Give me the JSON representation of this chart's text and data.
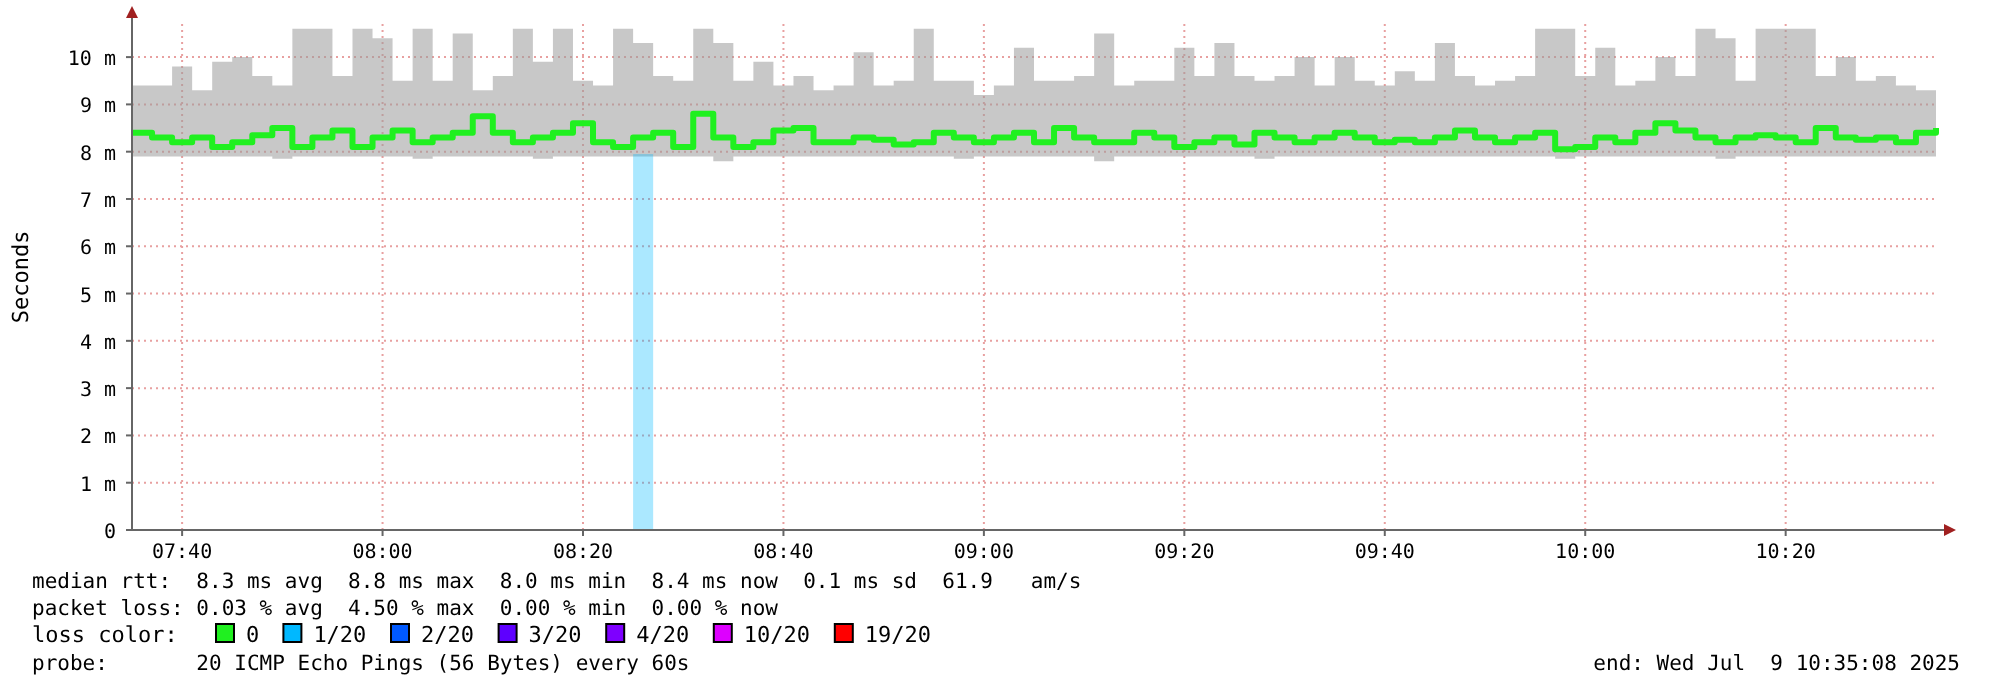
{
  "chart_data": {
    "type": "step",
    "ylabel": "Seconds",
    "xlim": [
      "2025-07-09T07:35",
      "2025-07-09T10:35"
    ],
    "xticks": [
      {
        "value": "2025-07-09T07:40",
        "label": "07:40"
      },
      {
        "value": "2025-07-09T08:00",
        "label": "08:00"
      },
      {
        "value": "2025-07-09T08:20",
        "label": "08:20"
      },
      {
        "value": "2025-07-09T08:40",
        "label": "08:40"
      },
      {
        "value": "2025-07-09T09:00",
        "label": "09:00"
      },
      {
        "value": "2025-07-09T09:20",
        "label": "09:20"
      },
      {
        "value": "2025-07-09T09:40",
        "label": "09:40"
      },
      {
        "value": "2025-07-09T10:00",
        "label": "10:00"
      },
      {
        "value": "2025-07-09T10:20",
        "label": "10:20"
      }
    ],
    "ylim": [
      0,
      10.7
    ],
    "yticks": [
      0,
      {
        "value": 1,
        "label": "1 m"
      },
      {
        "value": 2,
        "label": "2 m"
      },
      {
        "value": 3,
        "label": "3 m"
      },
      {
        "value": 4,
        "label": "4 m"
      },
      {
        "value": 5,
        "label": "5 m"
      },
      {
        "value": 6,
        "label": "6 m"
      },
      {
        "value": 7,
        "label": "7 m"
      },
      {
        "value": 8,
        "label": "8 m"
      },
      {
        "value": 9,
        "label": "9 m"
      },
      {
        "value": 10,
        "label": "10 m"
      }
    ],
    "grid": true,
    "legend": "bottom",
    "legend_title": "loss color:",
    "x": [
      "2025-07-09T07:35",
      "2025-07-09T07:37",
      "2025-07-09T07:39",
      "2025-07-09T07:41",
      "2025-07-09T07:43",
      "2025-07-09T07:45",
      "2025-07-09T07:47",
      "2025-07-09T07:49",
      "2025-07-09T07:51",
      "2025-07-09T07:53",
      "2025-07-09T07:55",
      "2025-07-09T07:57",
      "2025-07-09T07:59",
      "2025-07-09T08:01",
      "2025-07-09T08:03",
      "2025-07-09T08:05",
      "2025-07-09T08:07",
      "2025-07-09T08:09",
      "2025-07-09T08:11",
      "2025-07-09T08:13",
      "2025-07-09T08:15",
      "2025-07-09T08:17",
      "2025-07-09T08:19",
      "2025-07-09T08:21",
      "2025-07-09T08:23",
      "2025-07-09T08:25",
      "2025-07-09T08:27",
      "2025-07-09T08:29",
      "2025-07-09T08:31",
      "2025-07-09T08:33",
      "2025-07-09T08:35",
      "2025-07-09T08:37",
      "2025-07-09T08:39",
      "2025-07-09T08:41",
      "2025-07-09T08:43",
      "2025-07-09T08:45",
      "2025-07-09T08:47",
      "2025-07-09T08:49",
      "2025-07-09T08:51",
      "2025-07-09T08:53",
      "2025-07-09T08:55",
      "2025-07-09T08:57",
      "2025-07-09T08:59",
      "2025-07-09T09:01",
      "2025-07-09T09:03",
      "2025-07-09T09:05",
      "2025-07-09T09:07",
      "2025-07-09T09:09",
      "2025-07-09T09:11",
      "2025-07-09T09:13",
      "2025-07-09T09:15",
      "2025-07-09T09:17",
      "2025-07-09T09:19",
      "2025-07-09T09:21",
      "2025-07-09T09:23",
      "2025-07-09T09:25",
      "2025-07-09T09:27",
      "2025-07-09T09:29",
      "2025-07-09T09:31",
      "2025-07-09T09:33",
      "2025-07-09T09:35",
      "2025-07-09T09:37",
      "2025-07-09T09:39",
      "2025-07-09T09:41",
      "2025-07-09T09:43",
      "2025-07-09T09:45",
      "2025-07-09T09:47",
      "2025-07-09T09:49",
      "2025-07-09T09:51",
      "2025-07-09T09:53",
      "2025-07-09T09:55",
      "2025-07-09T09:57",
      "2025-07-09T09:59",
      "2025-07-09T10:01",
      "2025-07-09T10:03",
      "2025-07-09T10:05",
      "2025-07-09T10:07",
      "2025-07-09T10:09",
      "2025-07-09T10:11",
      "2025-07-09T10:13",
      "2025-07-09T10:15",
      "2025-07-09T10:17",
      "2025-07-09T10:19",
      "2025-07-09T10:21",
      "2025-07-09T10:23",
      "2025-07-09T10:25",
      "2025-07-09T10:27",
      "2025-07-09T10:29",
      "2025-07-09T10:31",
      "2025-07-09T10:33",
      "2025-07-09T10:35"
    ],
    "series": [
      {
        "name": "0",
        "color": "#20f020",
        "values": [
          8.4,
          8.3,
          8.2,
          8.3,
          8.1,
          8.2,
          8.35,
          8.5,
          8.1,
          8.3,
          8.45,
          8.1,
          8.3,
          8.45,
          8.2,
          8.3,
          8.4,
          8.75,
          8.4,
          8.2,
          8.3,
          8.4,
          8.6,
          8.2,
          8.1,
          8.3,
          8.4,
          8.1,
          8.8,
          8.3,
          8.1,
          8.2,
          8.45,
          8.5,
          8.2,
          8.2,
          8.3,
          8.25,
          8.15,
          8.2,
          8.4,
          8.3,
          8.2,
          8.3,
          8.4,
          8.2,
          8.5,
          8.3,
          8.2,
          8.2,
          8.4,
          8.3,
          8.1,
          8.2,
          8.3,
          8.15,
          8.4,
          8.3,
          8.2,
          8.3,
          8.4,
          8.3,
          8.2,
          8.25,
          8.2,
          8.3,
          8.45,
          8.3,
          8.2,
          8.3,
          8.4,
          8.05,
          8.1,
          8.3,
          8.2,
          8.4,
          8.6,
          8.45,
          8.3,
          8.2,
          8.3,
          8.35,
          8.3,
          8.2,
          8.5,
          8.3,
          8.25,
          8.3,
          8.2,
          8.4,
          8.5
        ],
        "lower": [
          7.9,
          7.9,
          7.9,
          7.9,
          7.9,
          7.9,
          7.9,
          7.85,
          7.9,
          7.9,
          7.9,
          7.9,
          7.9,
          7.9,
          7.85,
          7.9,
          7.9,
          7.9,
          7.9,
          7.9,
          7.85,
          7.9,
          7.9,
          7.9,
          7.9,
          7.9,
          7.9,
          7.9,
          7.9,
          7.8,
          7.9,
          7.9,
          7.9,
          7.9,
          7.9,
          7.9,
          7.9,
          7.9,
          7.9,
          7.9,
          7.9,
          7.85,
          7.9,
          7.9,
          7.9,
          7.9,
          7.9,
          7.9,
          7.8,
          7.9,
          7.9,
          7.9,
          7.9,
          7.9,
          7.9,
          7.9,
          7.85,
          7.9,
          7.9,
          7.9,
          7.9,
          7.9,
          7.9,
          7.9,
          7.9,
          7.9,
          7.9,
          7.9,
          7.9,
          7.9,
          7.9,
          7.85,
          7.9,
          7.9,
          7.9,
          7.9,
          7.9,
          7.9,
          7.9,
          7.85,
          7.9,
          7.9,
          7.9,
          7.9,
          7.9,
          7.9,
          7.9,
          7.9,
          7.9,
          7.9,
          7.9
        ],
        "upper": [
          9.4,
          9.4,
          9.8,
          9.3,
          9.9,
          10.0,
          9.6,
          9.4,
          10.6,
          10.6,
          9.6,
          10.6,
          10.4,
          9.5,
          10.6,
          9.5,
          10.5,
          9.3,
          9.6,
          10.6,
          9.9,
          10.6,
          9.5,
          9.4,
          10.6,
          10.3,
          9.6,
          9.5,
          10.6,
          10.3,
          9.5,
          9.9,
          9.4,
          9.6,
          9.3,
          9.4,
          10.1,
          9.4,
          9.5,
          10.6,
          9.5,
          9.5,
          9.2,
          9.4,
          10.2,
          9.5,
          9.5,
          9.6,
          10.5,
          9.4,
          9.5,
          9.5,
          10.2,
          9.6,
          10.3,
          9.6,
          9.5,
          9.6,
          10.0,
          9.4,
          10.0,
          9.5,
          9.4,
          9.7,
          9.5,
          10.3,
          9.6,
          9.4,
          9.5,
          9.6,
          10.6,
          10.6,
          9.6,
          10.2,
          9.4,
          9.5,
          10.0,
          9.6,
          10.6,
          10.4,
          9.5,
          10.6,
          10.6,
          10.6,
          9.6,
          10.0,
          9.5,
          9.6,
          9.4,
          9.3,
          9.5
        ]
      },
      {
        "name": "1/20",
        "type": "bar",
        "color": "#00b8ff",
        "x": [
          "2025-07-09T08:26"
        ],
        "values": [
          7.95
        ]
      },
      {
        "name": "2/20",
        "color": "#0059ff",
        "values": [
          null,
          null,
          null,
          null,
          null,
          null,
          null,
          null,
          null,
          null,
          null,
          null,
          null,
          null,
          null,
          null,
          null,
          null,
          null,
          null,
          null,
          null,
          null,
          null,
          null,
          null,
          null,
          null,
          null,
          null,
          null,
          null,
          null,
          null,
          null,
          null,
          null,
          null,
          null,
          null,
          null,
          null,
          null,
          null,
          null,
          null,
          null,
          null,
          null,
          null,
          null,
          null,
          null,
          null,
          null,
          null,
          null,
          null,
          null,
          null,
          null,
          null,
          null,
          null,
          null,
          null,
          null,
          null,
          null,
          null,
          null,
          null,
          null,
          null,
          null,
          null,
          null,
          null,
          null,
          null,
          null,
          null,
          null,
          null,
          null,
          null,
          null,
          null,
          null,
          null,
          null
        ]
      },
      {
        "name": "3/20",
        "color": "#5e00ff",
        "values": [
          null,
          null,
          null,
          null,
          null,
          null,
          null,
          null,
          null,
          null,
          null,
          null,
          null,
          null,
          null,
          null,
          null,
          null,
          null,
          null,
          null,
          null,
          null,
          null,
          null,
          null,
          null,
          null,
          null,
          null,
          null,
          null,
          null,
          null,
          null,
          null,
          null,
          null,
          null,
          null,
          null,
          null,
          null,
          null,
          null,
          null,
          null,
          null,
          null,
          null,
          null,
          null,
          null,
          null,
          null,
          null,
          null,
          null,
          null,
          null,
          null,
          null,
          null,
          null,
          null,
          null,
          null,
          null,
          null,
          null,
          null,
          null,
          null,
          null,
          null,
          null,
          null,
          null,
          null,
          null,
          null,
          null,
          null,
          null,
          null,
          null,
          null,
          null,
          null,
          null,
          null
        ]
      },
      {
        "name": "4/20",
        "color": "#7e00ff",
        "values": [
          null,
          null,
          null,
          null,
          null,
          null,
          null,
          null,
          null,
          null,
          null,
          null,
          null,
          null,
          null,
          null,
          null,
          null,
          null,
          null,
          null,
          null,
          null,
          null,
          null,
          null,
          null,
          null,
          null,
          null,
          null,
          null,
          null,
          null,
          null,
          null,
          null,
          null,
          null,
          null,
          null,
          null,
          null,
          null,
          null,
          null,
          null,
          null,
          null,
          null,
          null,
          null,
          null,
          null,
          null,
          null,
          null,
          null,
          null,
          null,
          null,
          null,
          null,
          null,
          null,
          null,
          null,
          null,
          null,
          null,
          null,
          null,
          null,
          null,
          null,
          null,
          null,
          null,
          null,
          null,
          null,
          null,
          null,
          null,
          null,
          null,
          null,
          null,
          null,
          null,
          null
        ]
      },
      {
        "name": "10/20",
        "color": "#dd00ff",
        "values": [
          null,
          null,
          null,
          null,
          null,
          null,
          null,
          null,
          null,
          null,
          null,
          null,
          null,
          null,
          null,
          null,
          null,
          null,
          null,
          null,
          null,
          null,
          null,
          null,
          null,
          null,
          null,
          null,
          null,
          null,
          null,
          null,
          null,
          null,
          null,
          null,
          null,
          null,
          null,
          null,
          null,
          null,
          null,
          null,
          null,
          null,
          null,
          null,
          null,
          null,
          null,
          null,
          null,
          null,
          null,
          null,
          null,
          null,
          null,
          null,
          null,
          null,
          null,
          null,
          null,
          null,
          null,
          null,
          null,
          null,
          null,
          null,
          null,
          null,
          null,
          null,
          null,
          null,
          null,
          null,
          null,
          null,
          null,
          null,
          null,
          null,
          null,
          null,
          null,
          null,
          null
        ]
      },
      {
        "name": "19/20",
        "color": "#ff0000",
        "values": [
          null,
          null,
          null,
          null,
          null,
          null,
          null,
          null,
          null,
          null,
          null,
          null,
          null,
          null,
          null,
          null,
          null,
          null,
          null,
          null,
          null,
          null,
          null,
          null,
          null,
          null,
          null,
          null,
          null,
          null,
          null,
          null,
          null,
          null,
          null,
          null,
          null,
          null,
          null,
          null,
          null,
          null,
          null,
          null,
          null,
          null,
          null,
          null,
          null,
          null,
          null,
          null,
          null,
          null,
          null,
          null,
          null,
          null,
          null,
          null,
          null,
          null,
          null,
          null,
          null,
          null,
          null,
          null,
          null,
          null,
          null,
          null,
          null,
          null,
          null,
          null,
          null,
          null,
          null,
          null,
          null,
          null,
          null,
          null,
          null,
          null,
          null,
          null,
          null,
          null,
          null
        ]
      }
    ],
    "annotations": [
      "median rtt:  8.3 ms avg  8.8 ms max  8.0 ms min  8.4 ms now  0.1 ms sd  61.9   am/s",
      "packet loss: 0.03 % avg  4.50 % max  0.00 % min  0.00 % now",
      "probe:       20 ICMP Echo Pings (56 Bytes) every 60s",
      "end: Wed Jul  9 10:35:08 2025"
    ]
  }
}
